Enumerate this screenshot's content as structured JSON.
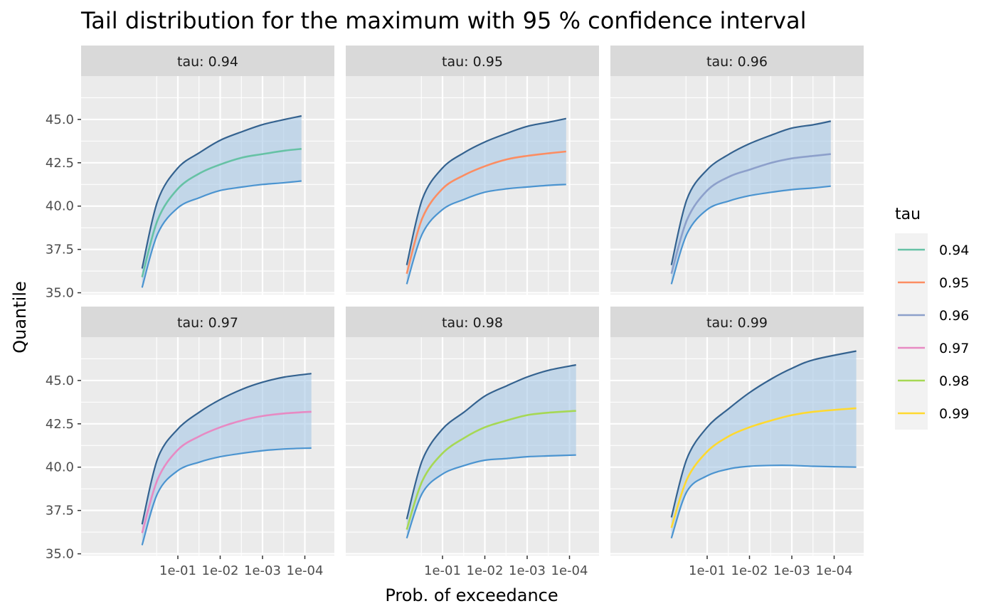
{
  "chart_data": {
    "type": "line",
    "title": "Tail distribution for the maximum with 95 % confidence interval",
    "xlabel": "Prob. of exceedance",
    "ylabel": "Quantile",
    "x_scale": "log (reversed)",
    "x_ticks": [
      "1e-01",
      "1e-02",
      "1e-03",
      "1e-04"
    ],
    "y_ticks": [
      "35.0",
      "37.5",
      "40.0",
      "42.5",
      "45.0"
    ],
    "ylim": [
      34.9,
      47.5
    ],
    "grid": true,
    "facet_by": "tau",
    "legend": {
      "title": "tau",
      "position": "right",
      "entries": [
        {
          "label": "0.94",
          "color": "#66C2A5"
        },
        {
          "label": "0.95",
          "color": "#FC8D62"
        },
        {
          "label": "0.96",
          "color": "#8DA0CB"
        },
        {
          "label": "0.97",
          "color": "#E78AC3"
        },
        {
          "label": "0.98",
          "color": "#A6D854"
        },
        {
          "label": "0.99",
          "color": "#FFD92F"
        }
      ]
    },
    "band_color": "#A6C8E6",
    "upper_color": "#34628F",
    "lower_color": "#4B94D0",
    "x": [
      "7e-01",
      "3e-01",
      "1e-01",
      "3e-02",
      "1e-02",
      "3e-03",
      "1e-03",
      "3e-04",
      "1e-04"
    ],
    "panels": [
      {
        "strip": "tau: 0.94",
        "tau": "0.94",
        "color": "#66C2A5",
        "x_last": "1.2e-04",
        "estimate": [
          35.9,
          39.2,
          41.0,
          41.9,
          42.4,
          42.8,
          43.0,
          43.2,
          43.3
        ],
        "upper": [
          36.4,
          40.3,
          42.2,
          43.1,
          43.8,
          44.3,
          44.7,
          45.0,
          45.2
        ],
        "lower": [
          35.3,
          38.4,
          39.9,
          40.5,
          40.9,
          41.1,
          41.25,
          41.35,
          41.45
        ]
      },
      {
        "strip": "tau: 0.95",
        "tau": "0.95",
        "color": "#FC8D62",
        "x_last": "1.2e-04",
        "estimate": [
          36.1,
          39.3,
          41.0,
          41.8,
          42.3,
          42.7,
          42.9,
          43.05,
          43.15
        ],
        "upper": [
          36.6,
          40.4,
          42.2,
          43.1,
          43.7,
          44.2,
          44.6,
          44.85,
          45.05
        ],
        "lower": [
          35.5,
          38.4,
          39.8,
          40.4,
          40.8,
          41.0,
          41.1,
          41.2,
          41.25
        ]
      },
      {
        "strip": "tau: 0.96",
        "tau": "0.96",
        "color": "#8DA0CB",
        "x_last": "1.2e-04",
        "estimate": [
          36.1,
          39.2,
          40.9,
          41.7,
          42.1,
          42.5,
          42.75,
          42.9,
          43.0
        ],
        "upper": [
          36.6,
          40.4,
          42.1,
          43.0,
          43.6,
          44.1,
          44.5,
          44.7,
          44.9
        ],
        "lower": [
          35.5,
          38.4,
          39.8,
          40.3,
          40.6,
          40.8,
          40.95,
          41.05,
          41.15
        ]
      },
      {
        "strip": "tau: 0.97",
        "tau": "0.97",
        "color": "#E78AC3",
        "x_last": "7e-05",
        "estimate": [
          36.2,
          39.3,
          41.0,
          41.8,
          42.3,
          42.7,
          42.95,
          43.1,
          43.2
        ],
        "upper": [
          36.7,
          40.5,
          42.2,
          43.2,
          43.9,
          44.5,
          44.9,
          45.2,
          45.4
        ],
        "lower": [
          35.5,
          38.5,
          39.8,
          40.3,
          40.6,
          40.8,
          40.95,
          41.05,
          41.1
        ]
      },
      {
        "strip": "tau: 0.98",
        "tau": "0.98",
        "color": "#A6D854",
        "x_last": "7e-05",
        "estimate": [
          36.4,
          39.2,
          40.8,
          41.7,
          42.3,
          42.7,
          43.0,
          43.15,
          43.25
        ],
        "upper": [
          37.0,
          40.4,
          42.2,
          43.2,
          44.1,
          44.7,
          45.2,
          45.6,
          45.9
        ],
        "lower": [
          35.9,
          38.5,
          39.6,
          40.1,
          40.4,
          40.5,
          40.6,
          40.65,
          40.7
        ]
      },
      {
        "strip": "tau: 0.99",
        "tau": "0.99",
        "color": "#FFD92F",
        "x_last": "3e-05",
        "estimate": [
          36.5,
          39.3,
          40.9,
          41.8,
          42.3,
          42.7,
          43.0,
          43.2,
          43.4
        ],
        "upper": [
          37.1,
          40.5,
          42.3,
          43.4,
          44.3,
          45.1,
          45.7,
          46.2,
          46.7
        ],
        "lower": [
          35.9,
          38.6,
          39.5,
          39.9,
          40.05,
          40.1,
          40.1,
          40.05,
          40.0
        ]
      }
    ]
  }
}
